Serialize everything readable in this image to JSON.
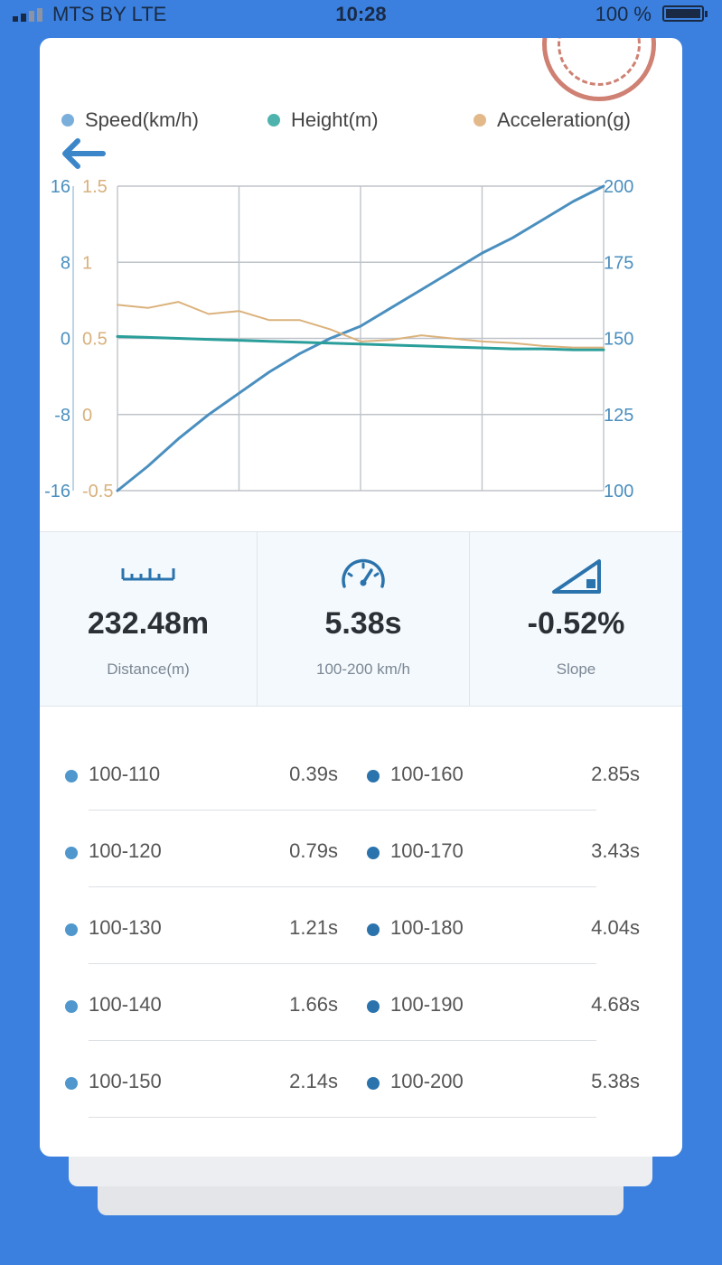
{
  "status_bar": {
    "carrier": "MTS BY  LTE",
    "time": "10:28",
    "battery": "100 %"
  },
  "colors": {
    "background": "#3b80de",
    "speed": "#4a8fbf",
    "height": "#2a9e9a",
    "acceleration": "#dbb27c",
    "dot_light": "#4f97cc",
    "dot_dark": "#2b73ad"
  },
  "legend": {
    "speed": "Speed(km/h)",
    "height": "Height(m)",
    "acceleration": "Acceleration(g)"
  },
  "chart_data": {
    "type": "line",
    "grid": true,
    "legend_position": "top",
    "x": [
      0,
      0.0625,
      0.125,
      0.1875,
      0.25,
      0.3125,
      0.375,
      0.4375,
      0.5,
      0.5625,
      0.625,
      0.6875,
      0.75,
      0.8125,
      0.875,
      0.9375,
      1
    ],
    "axes": {
      "height": {
        "ticks": [
          "16",
          "8",
          "0",
          "-8",
          "-16"
        ],
        "ylim": [
          -16,
          16
        ]
      },
      "acceleration": {
        "ticks": [
          "1.5",
          "1",
          "0.5",
          "0",
          "-0.5"
        ],
        "ylim": [
          -0.5,
          1.5
        ]
      },
      "speed": {
        "ticks": [
          "200",
          "175",
          "150",
          "125",
          "100"
        ],
        "ylim": [
          100,
          200
        ]
      }
    },
    "series": [
      {
        "name": "Speed(km/h)",
        "axis": "speed",
        "values": [
          100,
          108,
          117,
          125,
          132,
          139,
          145,
          150,
          154,
          160,
          166,
          172,
          178,
          183,
          189,
          195,
          200
        ]
      },
      {
        "name": "Height(m)",
        "axis": "height",
        "values": [
          0.2,
          0.1,
          0.0,
          -0.1,
          -0.2,
          -0.3,
          -0.4,
          -0.5,
          -0.6,
          -0.7,
          -0.8,
          -0.9,
          -1.0,
          -1.1,
          -1.1,
          -1.2,
          -1.2
        ]
      },
      {
        "name": "Acceleration(g)",
        "axis": "acceleration",
        "values": [
          0.72,
          0.7,
          0.74,
          0.66,
          0.68,
          0.62,
          0.62,
          0.56,
          0.48,
          0.49,
          0.52,
          0.5,
          0.48,
          0.47,
          0.45,
          0.44,
          0.44
        ]
      }
    ]
  },
  "stats": [
    {
      "icon": "ruler-icon",
      "value": "232.48m",
      "label": "Distance(m)"
    },
    {
      "icon": "speedometer-icon",
      "value": "5.38s",
      "label": "100-200 km/h"
    },
    {
      "icon": "slope-icon",
      "value": "-0.52%",
      "label": "Slope"
    }
  ],
  "splits": {
    "left": [
      {
        "range": "100-110",
        "time": "0.39s"
      },
      {
        "range": "100-120",
        "time": "0.79s"
      },
      {
        "range": "100-130",
        "time": "1.21s"
      },
      {
        "range": "100-140",
        "time": "1.66s"
      },
      {
        "range": "100-150",
        "time": "2.14s"
      }
    ],
    "right": [
      {
        "range": "100-160",
        "time": "2.85s"
      },
      {
        "range": "100-170",
        "time": "3.43s"
      },
      {
        "range": "100-180",
        "time": "4.04s"
      },
      {
        "range": "100-190",
        "time": "4.68s"
      },
      {
        "range": "100-200",
        "time": "5.38s"
      }
    ]
  }
}
